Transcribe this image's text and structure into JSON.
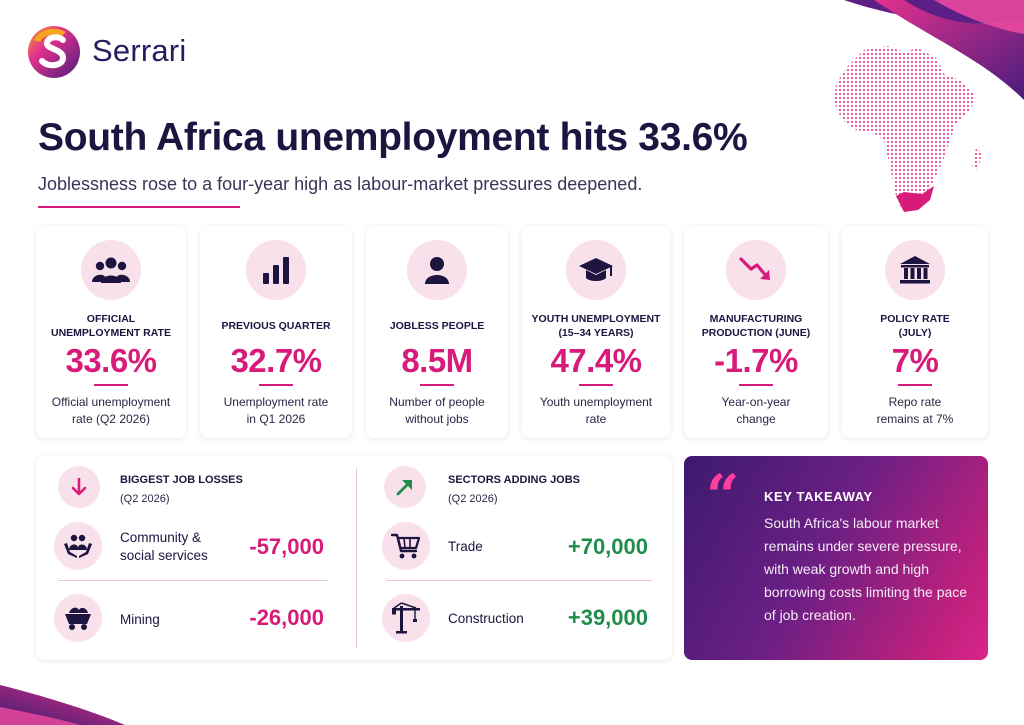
{
  "brand": {
    "name": "Serrari"
  },
  "headline": {
    "title": "South Africa unemployment hits 33.6%",
    "subtitle": "Joblessness rose to a four-year high as labour-market pressures deepened."
  },
  "colors": {
    "accent": "#d81b7a",
    "navy": "#1d1440",
    "positive": "#1e8e4a",
    "icon_bg": "#f9e1ec"
  },
  "stats": [
    {
      "icon": "people-group-icon",
      "label": "Official\nunemployment rate",
      "value": "33.6%",
      "desc": "Official unemployment\nrate (Q2 2026)"
    },
    {
      "icon": "bar-chart-icon",
      "label": "Previous quarter",
      "value": "32.7%",
      "desc": "Unemployment rate\nin Q1 2026"
    },
    {
      "icon": "person-icon",
      "label": "Jobless people",
      "value": "8.5M",
      "desc": "Number of people\nwithout jobs"
    },
    {
      "icon": "graduation-cap-icon",
      "label": "Youth unemployment\n(15–34 years)",
      "value": "47.4%",
      "desc": "Youth unemployment\nrate"
    },
    {
      "icon": "trend-down-icon",
      "label": "Manufacturing\nproduction (June)",
      "value": "-1.7%",
      "desc": "Year-on-year\nchange"
    },
    {
      "icon": "bank-icon",
      "label": "Policy rate\n(July)",
      "value": "7%",
      "desc": "Repo rate\nremains at 7%"
    }
  ],
  "losses": {
    "title": "BIGGEST JOB LOSSES",
    "period": "(Q2 2026)",
    "icon": "arrow-down-icon",
    "rows": [
      {
        "icon": "hands-people-icon",
        "name": "Community &\nsocial services",
        "value": "-57,000"
      },
      {
        "icon": "mining-cart-icon",
        "name": "Mining",
        "value": "-26,000"
      }
    ]
  },
  "gains": {
    "title": "SECTORS ADDING JOBS",
    "period": "(Q2 2026)",
    "icon": "arrow-up-right-icon",
    "rows": [
      {
        "icon": "shopping-cart-icon",
        "name": "Trade",
        "value": "+70,000"
      },
      {
        "icon": "crane-icon",
        "name": "Construction",
        "value": "+39,000"
      }
    ]
  },
  "takeaway": {
    "title": "KEY TAKEAWAY",
    "text": "South Africa's labour market remains under severe pressure, with weak growth and high borrowing costs limiting the pace of job creation."
  }
}
